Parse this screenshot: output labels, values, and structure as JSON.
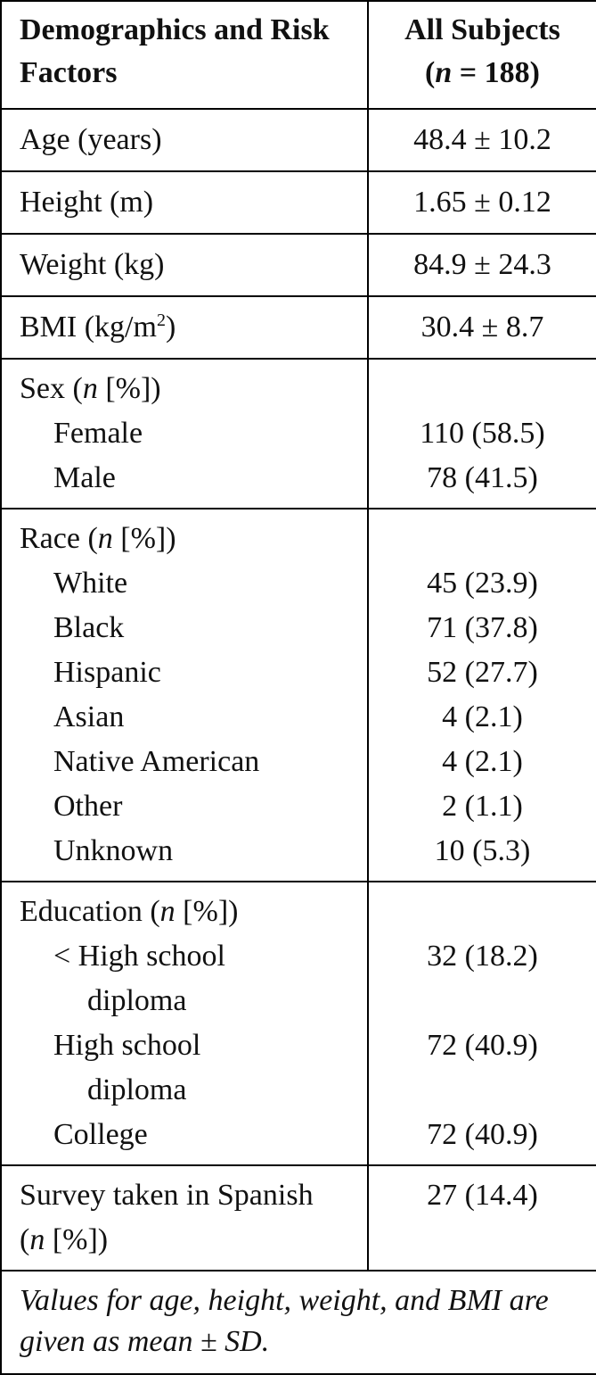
{
  "header": {
    "col1": "Demographics and Risk Factors",
    "col2_line1": "All Subjects",
    "col2_line2": [
      "(",
      "n",
      " = 188)"
    ]
  },
  "rows": [
    {
      "label": "Age (years)",
      "value": "48.4 ± 10.2"
    },
    {
      "label": "Height (m)",
      "value": "1.65 ± 0.12"
    },
    {
      "label": "Weight (kg)",
      "value": "84.9 ± 24.3"
    },
    {
      "label": [
        "BMI (kg/m",
        "2",
        ")"
      ],
      "value": "30.4 ± 8.7"
    }
  ],
  "groups": [
    {
      "label": [
        "Sex (",
        "n",
        " [%])"
      ],
      "items": [
        {
          "label": "Female",
          "value": "110 (58.5)"
        },
        {
          "label": "Male",
          "value": "78 (41.5)"
        }
      ]
    },
    {
      "label": [
        "Race (",
        "n",
        " [%])"
      ],
      "items": [
        {
          "label": "White",
          "value": "45 (23.9)"
        },
        {
          "label": "Black",
          "value": "71 (37.8)"
        },
        {
          "label": "Hispanic",
          "value": "52 (27.7)"
        },
        {
          "label": "Asian",
          "value": "4 (2.1)"
        },
        {
          "label": "Native American",
          "value": "4 (2.1)"
        },
        {
          "label": "Other",
          "value": "2 (1.1)"
        },
        {
          "label": "Unknown",
          "value": "10 (5.3)"
        }
      ]
    },
    {
      "label": [
        "Education (",
        "n",
        " [%])"
      ],
      "items": [
        {
          "label": "< High school diploma",
          "value": "32 (18.2)"
        },
        {
          "label": "High school diploma",
          "value": "72 (40.9)"
        },
        {
          "label": "College",
          "value": "72 (40.9)"
        }
      ]
    }
  ],
  "survey": {
    "label": [
      "Survey taken in Spanish (",
      "n",
      " [%])"
    ],
    "value": "27 (14.4)"
  },
  "footnote": "Values for age, height, weight, and BMI are given as mean ± SD."
}
